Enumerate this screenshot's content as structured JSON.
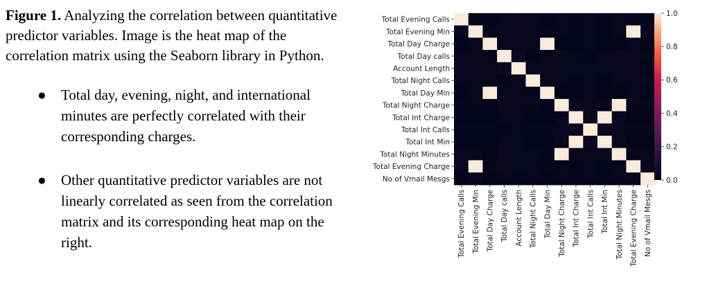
{
  "caption": {
    "label": "Figure 1.",
    "text": " Analyzing the correlation between quantitative predictor variables. Image is the heat map of the correlation matrix using the Seaborn library in Python."
  },
  "bullets": [
    "Total day, evening, night, and international minutes are perfectly correlated with their corresponding charges.",
    "Other quantitative predictor variables are not linearly correlated as seen from the correlation matrix and its corresponding heat map on the right."
  ],
  "chart_data": {
    "type": "heatmap",
    "title": "",
    "rows": [
      "Total Evening Calls",
      "Total Evening Min",
      "Total Day Charge",
      "Total Day calls",
      "Account Length",
      "Total Night Calls",
      "Total Day Min",
      "Total Night Charge",
      "Total Int Charge",
      "Total Int Calls",
      "Total Int Min",
      "Total Night Minutes",
      "Total Evening Charge",
      "No of Vmail Mesgs"
    ],
    "columns": [
      "Total Evening Calls",
      "Total Evening Min",
      "Total Day Charge",
      "Total Day calls",
      "Account Length",
      "Total Night Calls",
      "Total Day Min",
      "Total Night Charge",
      "Total Int Charge",
      "Total Int Calls",
      "Total Int Min",
      "Total Night Minutes",
      "Total Evening Charge",
      "No of Vmail Mesgs"
    ],
    "values": [
      [
        1.0,
        0.01,
        0.0,
        0.01,
        0.02,
        0.01,
        0.0,
        0.01,
        0.0,
        0.01,
        0.0,
        0.01,
        0.01,
        0.0
      ],
      [
        0.01,
        1.0,
        0.01,
        0.02,
        0.01,
        0.01,
        0.01,
        0.01,
        0.0,
        0.01,
        0.0,
        0.01,
        1.0,
        0.02
      ],
      [
        0.0,
        0.01,
        1.0,
        0.01,
        0.01,
        0.01,
        1.0,
        0.0,
        0.0,
        0.01,
        0.0,
        0.0,
        0.01,
        0.0
      ],
      [
        0.01,
        0.02,
        0.01,
        1.0,
        0.03,
        0.0,
        0.01,
        0.02,
        0.01,
        0.0,
        0.01,
        0.02,
        0.02,
        0.01
      ],
      [
        0.02,
        0.01,
        0.01,
        0.03,
        1.0,
        0.02,
        0.01,
        0.01,
        0.01,
        0.01,
        0.01,
        0.01,
        0.01,
        0.0
      ],
      [
        0.01,
        0.01,
        0.01,
        0.0,
        0.02,
        1.0,
        0.01,
        0.01,
        0.0,
        0.01,
        0.0,
        0.01,
        0.01,
        0.01
      ],
      [
        0.0,
        0.01,
        1.0,
        0.01,
        0.01,
        0.01,
        1.0,
        0.0,
        0.0,
        0.01,
        0.0,
        0.0,
        0.01,
        0.0
      ],
      [
        0.01,
        0.01,
        0.0,
        0.02,
        0.01,
        0.01,
        0.0,
        1.0,
        0.02,
        0.01,
        0.02,
        1.0,
        0.01,
        0.01
      ],
      [
        0.0,
        0.0,
        0.0,
        0.01,
        0.01,
        0.0,
        0.0,
        0.02,
        1.0,
        0.03,
        1.0,
        0.02,
        0.0,
        0.0
      ],
      [
        0.01,
        0.01,
        0.01,
        0.0,
        0.01,
        0.01,
        0.01,
        0.01,
        0.03,
        1.0,
        0.03,
        0.01,
        0.01,
        0.01
      ],
      [
        0.0,
        0.0,
        0.0,
        0.01,
        0.01,
        0.0,
        0.0,
        0.02,
        1.0,
        0.03,
        1.0,
        0.02,
        0.0,
        0.0
      ],
      [
        0.01,
        0.01,
        0.0,
        0.02,
        0.01,
        0.01,
        0.0,
        1.0,
        0.02,
        0.01,
        0.02,
        1.0,
        0.01,
        0.01
      ],
      [
        0.01,
        1.0,
        0.01,
        0.02,
        0.01,
        0.01,
        0.01,
        0.01,
        0.0,
        0.01,
        0.0,
        0.01,
        1.0,
        0.02
      ],
      [
        0.0,
        0.02,
        0.0,
        0.01,
        0.0,
        0.01,
        0.0,
        0.01,
        0.0,
        0.01,
        0.0,
        0.01,
        0.02,
        1.0
      ]
    ],
    "vmin": 0.0,
    "vmax": 1.0,
    "colorbar_ticks": [
      0.0,
      0.2,
      0.4,
      0.6,
      0.8,
      1.0
    ],
    "colorbar_labels": [
      "0.0",
      "0.2",
      "0.4",
      "0.6",
      "0.8",
      "1.0"
    ],
    "colormap": "rocket",
    "colorbar_position": "right"
  }
}
